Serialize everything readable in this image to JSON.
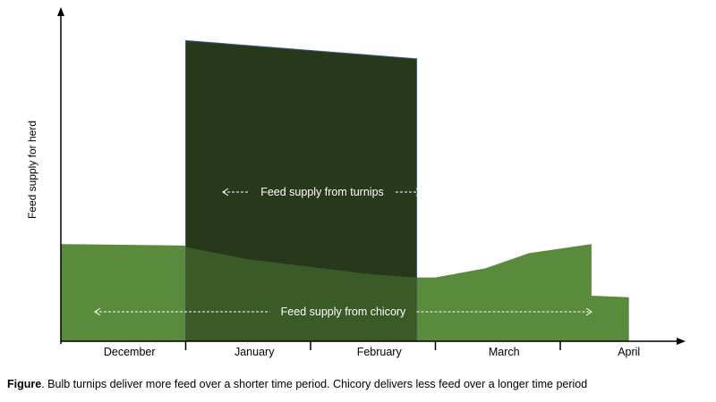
{
  "chart_data": {
    "type": "area",
    "ylabel": "Feed supply for herd",
    "xlabel": "",
    "months": [
      "December",
      "January",
      "February",
      "March",
      "April"
    ],
    "series": [
      {
        "key": "turnips",
        "label": "Feed supply from turnips",
        "color": "#27391a",
        "points": [
          [
            1.0,
            0.0
          ],
          [
            1.0,
            0.99
          ],
          [
            2.85,
            0.93
          ],
          [
            2.85,
            0.0
          ]
        ]
      },
      {
        "key": "chicory",
        "label": "Feed supply from chicory",
        "color": "#5a8b3c",
        "points": [
          [
            0.0,
            0.32
          ],
          [
            1.0,
            0.315
          ],
          [
            1.0,
            0.31
          ],
          [
            1.5,
            0.27
          ],
          [
            2.5,
            0.22
          ],
          [
            2.85,
            0.21
          ],
          [
            3.0,
            0.21
          ],
          [
            3.4,
            0.24
          ],
          [
            3.75,
            0.29
          ],
          [
            4.25,
            0.32
          ],
          [
            4.25,
            0.15
          ],
          [
            4.55,
            0.145
          ],
          [
            4.55,
            0.0
          ],
          [
            0.0,
            0.0
          ]
        ]
      }
    ],
    "overlap_color": "#3a5a27",
    "xlim": [
      0,
      5
    ],
    "ylim": [
      0,
      1
    ]
  },
  "caption": {
    "bold": "Figure",
    "text": ". Bulb turnips deliver more feed over a shorter time period. Chicory delivers less feed over a longer time period"
  }
}
